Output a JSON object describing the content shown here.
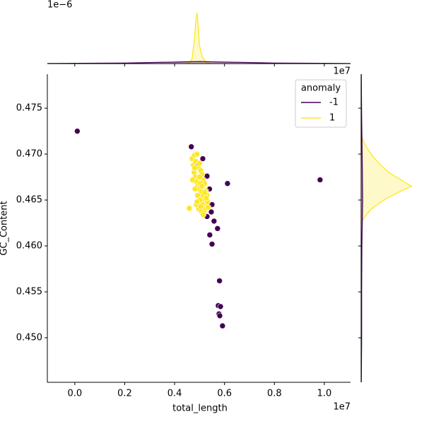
{
  "chart_data": {
    "type": "jointplot",
    "x_label": "total_length",
    "y_label": "GC_Content",
    "x_offset_label": "1e7",
    "top_x_offset_label": "1e7",
    "top_y_offset_label": "1e−6",
    "legend_title": "anomaly",
    "legend_position": "upper right",
    "xlim": [
      -0.11,
      1.105
    ],
    "ylim": [
      0.44515,
      0.4787
    ],
    "xticks": [
      {
        "value": 0,
        "label": "0.0"
      },
      0.2,
      0.4,
      0.6,
      0.8,
      {
        "value": 1,
        "label": "1.0"
      }
    ],
    "yticks": [
      {
        "value": 0.45,
        "label": "0.450"
      },
      0.455,
      {
        "value": 0.46,
        "label": "0.460"
      },
      0.465,
      {
        "value": 0.47,
        "label": "0.470"
      },
      0.475
    ],
    "series": [
      {
        "name": "-1",
        "color": "#440154",
        "x": [
          0.01,
          0.983,
          0.612,
          0.467,
          0.49,
          0.53,
          0.524,
          0.53,
          0.55,
          0.547,
          0.558,
          0.572,
          0.541,
          0.55,
          0.58,
          0.575,
          0.584,
          0.578,
          0.581,
          0.592,
          0.513,
          0.54
        ],
        "values": [
          0.4725,
          0.4672,
          0.4668,
          0.4708,
          0.4686,
          0.4676,
          0.4652,
          0.4632,
          0.4645,
          0.4637,
          0.4627,
          0.4619,
          0.4612,
          0.4602,
          0.4562,
          0.4535,
          0.4534,
          0.4526,
          0.4524,
          0.4513,
          0.4695,
          0.4662
        ]
      },
      {
        "name": "1",
        "color": "#fde725",
        "x": [
          0.459,
          0.47,
          0.475,
          0.48,
          0.485,
          0.49,
          0.495,
          0.5,
          0.505,
          0.51,
          0.515,
          0.52,
          0.525,
          0.53,
          0.478,
          0.483,
          0.488,
          0.493,
          0.498,
          0.503,
          0.508,
          0.513,
          0.518,
          0.523,
          0.472,
          0.482,
          0.492,
          0.502,
          0.512,
          0.522,
          0.532,
          0.487,
          0.497,
          0.507,
          0.517,
          0.527,
          0.48,
          0.5,
          0.51,
          0.52,
          0.535,
          0.49,
          0.505,
          0.515
        ],
        "values": [
          0.4641,
          0.4695,
          0.4688,
          0.4699,
          0.4692,
          0.47,
          0.4685,
          0.469,
          0.4682,
          0.4678,
          0.4672,
          0.4668,
          0.466,
          0.4655,
          0.468,
          0.4675,
          0.467,
          0.4665,
          0.4662,
          0.4668,
          0.4659,
          0.4655,
          0.465,
          0.4645,
          0.4672,
          0.4662,
          0.4655,
          0.465,
          0.4645,
          0.464,
          0.4648,
          0.4645,
          0.464,
          0.4638,
          0.4636,
          0.4652,
          0.4685,
          0.4675,
          0.4665,
          0.4658,
          0.4642,
          0.4648,
          0.4643,
          0.4634
        ]
      }
    ],
    "top_marginal": {
      "ylim": [
        0,
        1.25
      ],
      "series": [
        {
          "color": "#fde725",
          "x": [
            0.44,
            0.46,
            0.47,
            0.48,
            0.485,
            0.49,
            0.495,
            0.5,
            0.51,
            0.52,
            0.53,
            0.55
          ],
          "values": [
            0,
            0.02,
            0.1,
            0.5,
            0.85,
            1.0,
            0.7,
            0.35,
            0.15,
            0.06,
            0.02,
            0
          ]
        },
        {
          "color": "#440154",
          "x": [
            -0.11,
            0,
            0.2,
            0.4,
            0.5,
            0.6,
            0.8,
            1.0,
            1.105
          ],
          "values": [
            0.002,
            0.005,
            0.01,
            0.03,
            0.04,
            0.03,
            0.01,
            0.005,
            0.002
          ]
        }
      ]
    },
    "right_marginal": {
      "xlim": [
        0,
        1.25
      ],
      "series": [
        {
          "color": "#fde725",
          "y": [
            0.4625,
            0.463,
            0.464,
            0.465,
            0.466,
            0.4665,
            0.467,
            0.468,
            0.469,
            0.47,
            0.471,
            0.472
          ],
          "values": [
            0,
            0.05,
            0.2,
            0.45,
            0.8,
            1.0,
            0.85,
            0.55,
            0.35,
            0.2,
            0.08,
            0
          ]
        },
        {
          "color": "#440154",
          "y": [
            0.44515,
            0.45,
            0.455,
            0.46,
            0.465,
            0.47,
            0.475,
            0.4787
          ],
          "values": [
            0.003,
            0.01,
            0.01,
            0.015,
            0.03,
            0.02,
            0.008,
            0.003
          ]
        }
      ]
    }
  }
}
